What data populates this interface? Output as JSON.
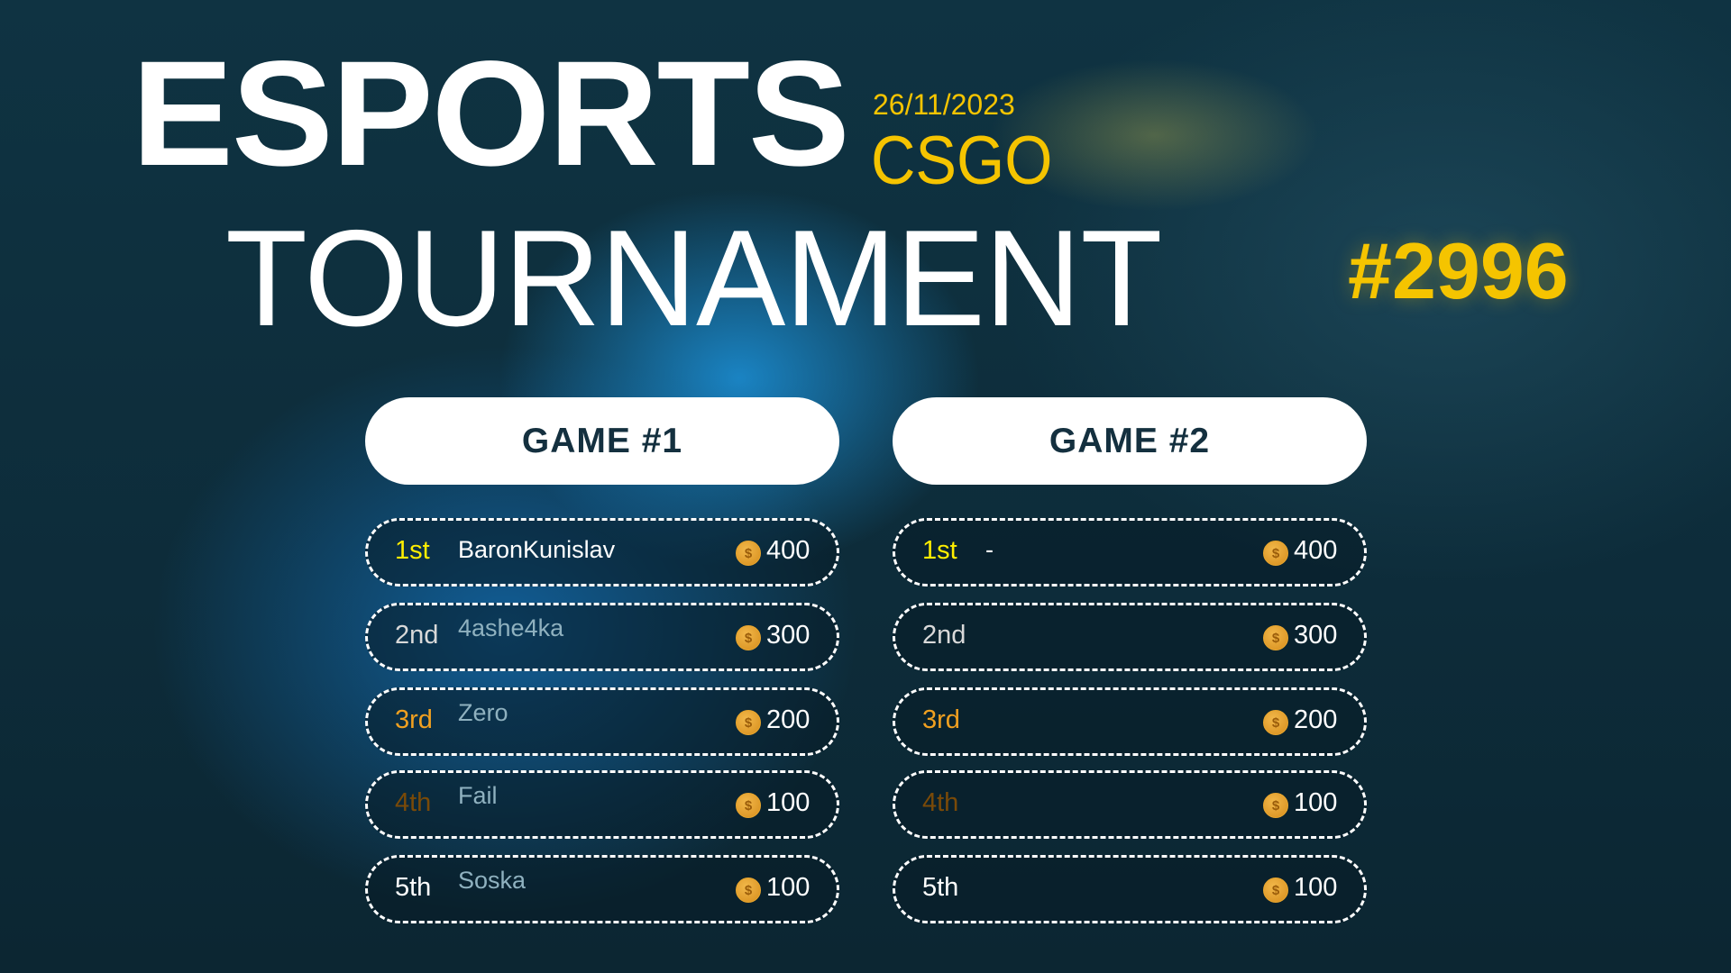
{
  "header": {
    "title_line1": "ESPORTS",
    "title_line2": "TOURNAMENT",
    "date": "26/11/2023",
    "game": "CSGO",
    "tournament_id": "#2996"
  },
  "colors": {
    "accent": "#f5c400",
    "rank1": "#ffee00",
    "rank2": "#d9d9d9",
    "rank3": "#f0a020",
    "rank4": "#7a4a08",
    "rank5": "#ffffff"
  },
  "games": [
    {
      "title": "GAME #1",
      "rows": [
        {
          "rank": "1st",
          "player": "BaronKunislav",
          "prize": "400",
          "coin_icon": "dollar-coin-icon"
        },
        {
          "rank": "2nd",
          "player": "4ashe4ka",
          "prize": "300",
          "coin_icon": "dollar-coin-icon"
        },
        {
          "rank": "3rd",
          "player": "Zero",
          "prize": "200",
          "coin_icon": "dollar-coin-icon"
        },
        {
          "rank": "4th",
          "player": "Fail",
          "prize": "100",
          "coin_icon": "dollar-coin-icon"
        },
        {
          "rank": "5th",
          "player": "Soska",
          "prize": "100",
          "coin_icon": "dollar-coin-icon"
        }
      ]
    },
    {
      "title": "GAME #2",
      "rows": [
        {
          "rank": "1st",
          "player": "-",
          "prize": "400",
          "coin_icon": "dollar-coin-icon"
        },
        {
          "rank": "2nd",
          "player": "",
          "prize": "300",
          "coin_icon": "dollar-coin-icon"
        },
        {
          "rank": "3rd",
          "player": "",
          "prize": "200",
          "coin_icon": "dollar-coin-icon"
        },
        {
          "rank": "4th",
          "player": "",
          "prize": "100",
          "coin_icon": "dollar-coin-icon"
        },
        {
          "rank": "5th",
          "player": "",
          "prize": "100",
          "coin_icon": "dollar-coin-icon"
        }
      ]
    }
  ]
}
